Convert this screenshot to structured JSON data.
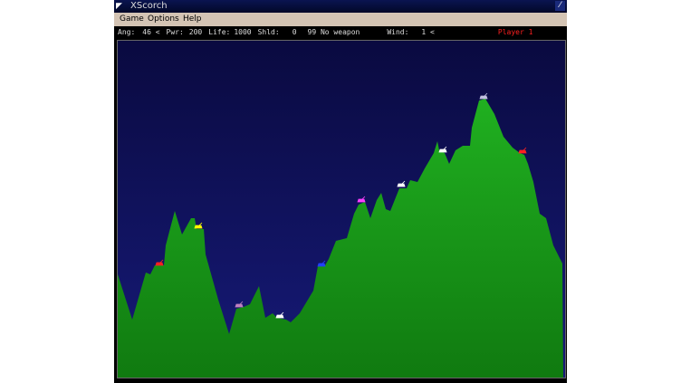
{
  "window": {
    "title": "XScorch"
  },
  "menu": [
    "Game",
    "Options",
    "Help"
  ],
  "status": {
    "ang_label": "Ang:",
    "ang": "46 <",
    "pwr_label": "Pwr:",
    "pwr": "200",
    "life_label": "Life:",
    "life": "1000",
    "shld_label": "Shld:",
    "shld": "0",
    "weapon": "99 No weapon",
    "wind_label": "Wind:",
    "wind": "1 <",
    "player": "Player 1"
  },
  "colors": {
    "sky_top": "#0a0a40",
    "sky_bottom": "#141870",
    "terrain": "#1a9a1a",
    "player_label": "#ff2020"
  },
  "tanks": [
    "#ff2020",
    "#ffff00",
    "#c080c0",
    "#ffffff",
    "#2040ff",
    "#ff40ff",
    "#ffffff",
    "#ffffff",
    "#c0c0e0",
    "#ff2020"
  ]
}
